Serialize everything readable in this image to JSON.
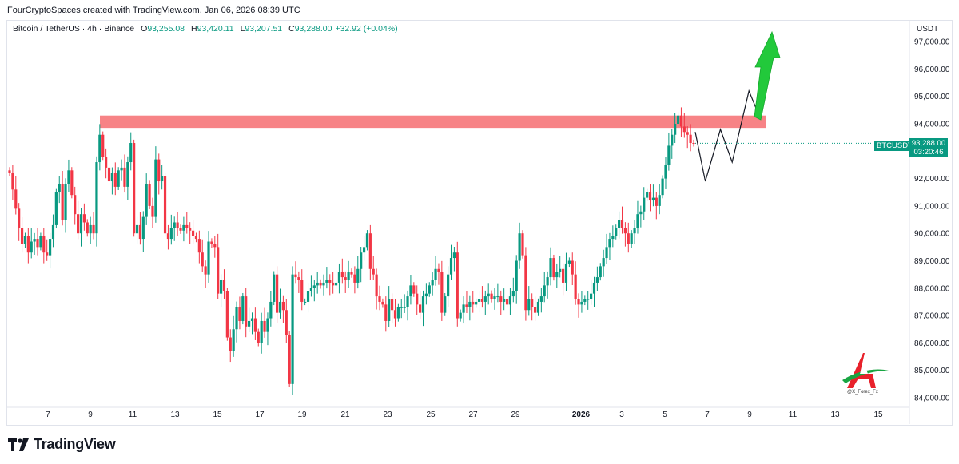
{
  "header": {
    "caption": "FourCryptoSpaces created with TradingView.com, Jan 06, 2026 08:39 UTC"
  },
  "symbol": {
    "name": "Bitcoin / TetherUS · 4h · Binance",
    "o_label": "O",
    "o": "93,255.08",
    "h_label": "H",
    "h": "93,420.11",
    "l_label": "L",
    "l": "93,207.51",
    "c_label": "C",
    "c": "93,288.00",
    "change": "+32.92 (+0.04%)"
  },
  "price_axis": {
    "currency": "USDT",
    "ticks": [
      "97,000.00",
      "96,000.00",
      "95,000.00",
      "94,000.00",
      "92,000.00",
      "91,000.00",
      "90,000.00",
      "89,000.00",
      "88,000.00",
      "87,000.00",
      "86,000.00",
      "85,000.00",
      "84,000.00"
    ],
    "current_price": "93,288.00",
    "countdown": "03:20:46",
    "ticker": "BTCUSDT"
  },
  "footer": {
    "brand": "TradingView"
  },
  "watermark": {
    "handle": "@X_Forex_Fx"
  },
  "colors": {
    "up": "#089981",
    "down": "#f23645",
    "zone": "#f77c80",
    "projection": "#131722",
    "arrow": "#22c93b",
    "badge": "#089981"
  },
  "chart_data": {
    "type": "candlestick",
    "title": "Bitcoin / TetherUS · 4h · Binance",
    "xlabel": "",
    "ylabel": "USDT",
    "ylim": [
      83700,
      97800
    ],
    "x_ticks": [
      "7",
      "9",
      "11",
      "13",
      "15",
      "17",
      "19",
      "21",
      "23",
      "25",
      "27",
      "29",
      "2026",
      "3",
      "5",
      "7",
      "9",
      "11",
      "13",
      "15"
    ],
    "resistance_zone": [
      93850,
      94300
    ],
    "projection_path": [
      [
        0,
        93700
      ],
      [
        3,
        91900
      ],
      [
        7.5,
        93800
      ],
      [
        11,
        92600
      ],
      [
        16,
        95200
      ],
      [
        19,
        94300
      ]
    ],
    "projection_start_index": 263,
    "last": {
      "open": 93255.08,
      "high": 93420.11,
      "low": 93207.51,
      "close": 93288.0
    },
    "candles": "Dec 6 → Jan 6 4h candles; close values approximated in series below",
    "series": [
      {
        "name": "BTCUSDT",
        "closes": [
          92200,
          91600,
          90900,
          90200,
          89600,
          89900,
          89300,
          89700,
          89800,
          89500,
          89900,
          89300,
          89200,
          89800,
          90300,
          91500,
          91800,
          90500,
          91800,
          92300,
          91400,
          90700,
          90000,
          90700,
          90400,
          90000,
          90300,
          90000,
          92600,
          93600,
          92800,
          92400,
          91900,
          92200,
          91700,
          92300,
          92400,
          91700,
          92600,
          93300,
          90000,
          90300,
          89800,
          90600,
          91800,
          91000,
          90600,
          92700,
          91900,
          92100,
          90000,
          89800,
          90200,
          90400,
          90200,
          90100,
          90300,
          90200,
          90100,
          89900,
          89800,
          89300,
          88800,
          88500,
          89700,
          89600,
          89500,
          87800,
          88300,
          87900,
          86200,
          85700,
          86500,
          87300,
          86800,
          87700,
          86600,
          86800,
          86900,
          86400,
          86000,
          86800,
          86400,
          86900,
          87500,
          88500,
          87100,
          87500,
          87200,
          86300,
          84500,
          88500,
          88400,
          88300,
          87500,
          87500,
          87900,
          88000,
          88100,
          88200,
          88100,
          88200,
          88300,
          88200,
          88100,
          88200,
          88600,
          88400,
          88300,
          88600,
          88500,
          88200,
          88700,
          89300,
          89500,
          90000,
          88700,
          88500,
          87700,
          87500,
          87400,
          86800,
          87600,
          87200,
          86900,
          87300,
          87300,
          87300,
          87700,
          88100,
          87800,
          87400,
          87100,
          87700,
          87800,
          88100,
          88300,
          88700,
          88600,
          87100,
          87700,
          88500,
          89100,
          89300,
          86900,
          87100,
          87400,
          87300,
          87500,
          87400,
          87500,
          87600,
          87500,
          87700,
          87800,
          87600,
          87700,
          87700,
          87500,
          87600,
          87400,
          87700,
          87900,
          89000,
          90000,
          89200,
          87200,
          87600,
          87300,
          87100,
          87500,
          87700,
          88100,
          88400,
          89100,
          88400,
          88600,
          88700,
          88200,
          88900,
          89000,
          88500,
          87600,
          87400,
          87500,
          87600,
          87600,
          87800,
          88200,
          88400,
          88800,
          89100,
          89500,
          89800,
          89900,
          90200,
          90500,
          90200,
          90000,
          89600,
          90000,
          90200,
          90700,
          90800,
          91300,
          91500,
          91200,
          91300,
          91000,
          91400,
          92000,
          92500,
          93200,
          93600,
          94000,
          94300,
          93900,
          93700,
          93600,
          93300,
          93288
        ]
      }
    ]
  }
}
